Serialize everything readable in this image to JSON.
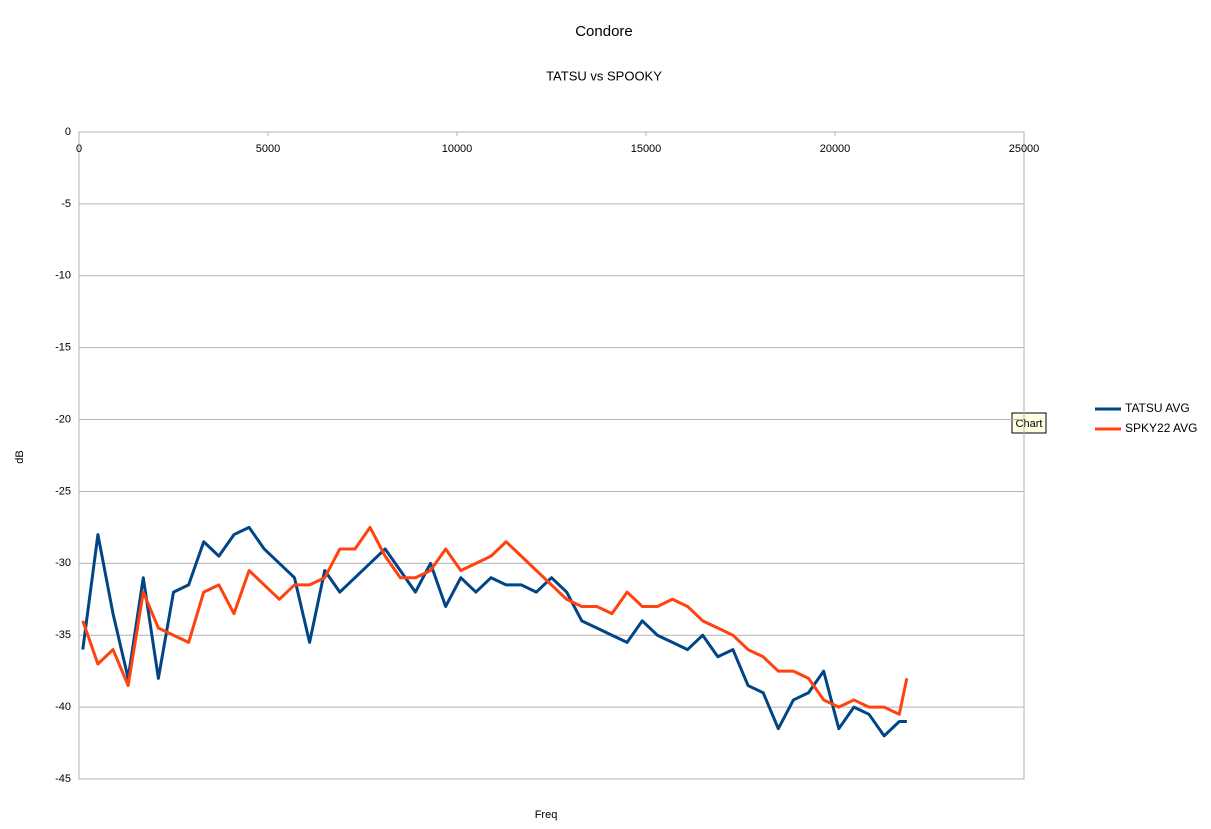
{
  "chart_data": {
    "type": "line",
    "title": "Condore",
    "subtitle": "TATSU vs SPOOKY",
    "x_label": "Freq",
    "y_label": "dB",
    "x": [
      100,
      500,
      900,
      1300,
      1700,
      2100,
      2500,
      2900,
      3300,
      3700,
      4100,
      4500,
      4900,
      5300,
      5700,
      6100,
      6500,
      6900,
      7300,
      7700,
      8100,
      8500,
      8900,
      9300,
      9700,
      10100,
      10500,
      10900,
      11300,
      11700,
      12100,
      12500,
      12900,
      13300,
      13700,
      14100,
      14500,
      14900,
      15300,
      15700,
      16100,
      16500,
      16900,
      17300,
      17700,
      18100,
      18500,
      18900,
      19300,
      19700,
      20100,
      20500,
      20900,
      21300,
      21700,
      21900
    ],
    "series": [
      {
        "name": "TATSU AVG",
        "color": "#004586",
        "values": [
          -36,
          -28,
          -33.5,
          -38,
          -31,
          -38,
          -32,
          -31.5,
          -28.5,
          -29.5,
          -28,
          -27.5,
          -29,
          -30,
          -31,
          -35.5,
          -30.5,
          -32,
          -31,
          -30,
          -29,
          -30.5,
          -32,
          -30,
          -33,
          -31,
          -32,
          -31,
          -31.5,
          -31.5,
          -32,
          -31,
          -32,
          -34,
          -34.5,
          -35,
          -35.5,
          -34,
          -35,
          -35.5,
          -36,
          -35,
          -36.5,
          -36,
          -38.5,
          -39,
          -41.5,
          -39.5,
          -39,
          -37.5,
          -41.5,
          -40,
          -40.5,
          -42,
          -41,
          -41
        ]
      },
      {
        "name": "SPKY22 AVG",
        "color": "#ff420e",
        "values": [
          -34,
          -37,
          -36,
          -38.5,
          -32,
          -34.5,
          -35,
          -35.5,
          -32,
          -31.5,
          -33.5,
          -30.5,
          -31.5,
          -32.5,
          -31.5,
          -31.5,
          -31,
          -29,
          -29,
          -27.5,
          -29.5,
          -31,
          -31,
          -30.5,
          -29,
          -30.5,
          -30,
          -29.5,
          -28.5,
          -29.5,
          -30.5,
          -31.5,
          -32.5,
          -33,
          -33,
          -33.5,
          -32,
          -33,
          -33,
          -32.5,
          -33,
          -34,
          -34.5,
          -35,
          -36,
          -36.5,
          -37.5,
          -37.5,
          -38,
          -39.5,
          -40,
          -39.5,
          -40,
          -40,
          -40.5,
          -38
        ]
      }
    ],
    "xlim": [
      0,
      25000
    ],
    "xticks": [
      0,
      5000,
      10000,
      15000,
      20000,
      25000
    ],
    "ylim": [
      -45,
      0
    ],
    "yticks": [
      0,
      -5,
      -10,
      -15,
      -20,
      -25,
      -30,
      -35,
      -40,
      -45
    ],
    "grid": true,
    "legend": "right"
  },
  "tooltip": "Chart"
}
